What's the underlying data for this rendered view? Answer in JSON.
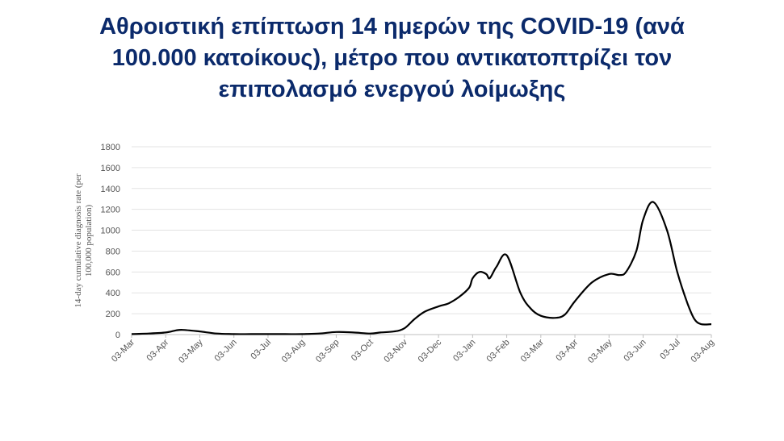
{
  "title_lines": [
    "Αθροιστική επίπτωση 14 ημερών της COVID-19 (ανά",
    "100.000 κατοίκους), μέτρο που αντικατοπτρίζει τον",
    "επιπολασμό ενεργού λοίμωξης"
  ],
  "chart_data": {
    "type": "line",
    "title": "Αθροιστική επίπτωση 14 ημερών της COVID-19 (ανά 100.000 κατοίκους), μέτρο που αντικατοπτρίζει τον επιπολασμό ενεργού λοίμωξης",
    "xlabel": "",
    "ylabel_lines": [
      "14-day cumulative diagnosis rate (per",
      "100,000 population)"
    ],
    "ylim": [
      0,
      1800
    ],
    "yticks": [
      0,
      200,
      400,
      600,
      800,
      1000,
      1200,
      1400,
      1600,
      1800
    ],
    "xticks": [
      "03-Mar",
      "03-Apr",
      "03-May",
      "03-Jun",
      "03-Jul",
      "03-Aug",
      "03-Sep",
      "03-Oct",
      "03-Nov",
      "03-Dec",
      "03-Jan",
      "03-Feb",
      "03-Mar",
      "03-Apr",
      "03-May",
      "03-Jun",
      "03-Jul",
      "03-Aug"
    ],
    "grid": "horizontal",
    "series_color": "#000000",
    "series": [
      {
        "x": [
          0,
          0.5,
          1,
          1.3,
          1.5,
          2,
          2.5,
          3,
          3.5,
          4,
          4.5,
          5,
          5.5,
          6,
          6.5,
          7,
          7.3,
          7.7,
          8,
          8.3,
          8.6,
          9,
          9.3,
          9.6,
          9.9,
          10,
          10.2,
          10.4,
          10.5,
          10.7,
          11,
          11.4,
          11.7,
          12,
          12.4,
          12.7,
          13,
          13.5,
          14,
          14.3,
          14.5,
          14.8,
          15,
          15.3,
          15.7,
          16,
          16.3,
          16.5,
          16.7,
          17
        ],
        "y": [
          5,
          10,
          20,
          40,
          45,
          30,
          10,
          5,
          5,
          5,
          5,
          5,
          10,
          25,
          20,
          10,
          20,
          30,
          60,
          150,
          220,
          270,
          300,
          360,
          450,
          540,
          600,
          580,
          540,
          650,
          760,
          400,
          250,
          180,
          160,
          190,
          320,
          500,
          580,
          570,
          600,
          800,
          1100,
          1270,
          1000,
          600,
          300,
          150,
          100,
          100
        ]
      }
    ]
  }
}
